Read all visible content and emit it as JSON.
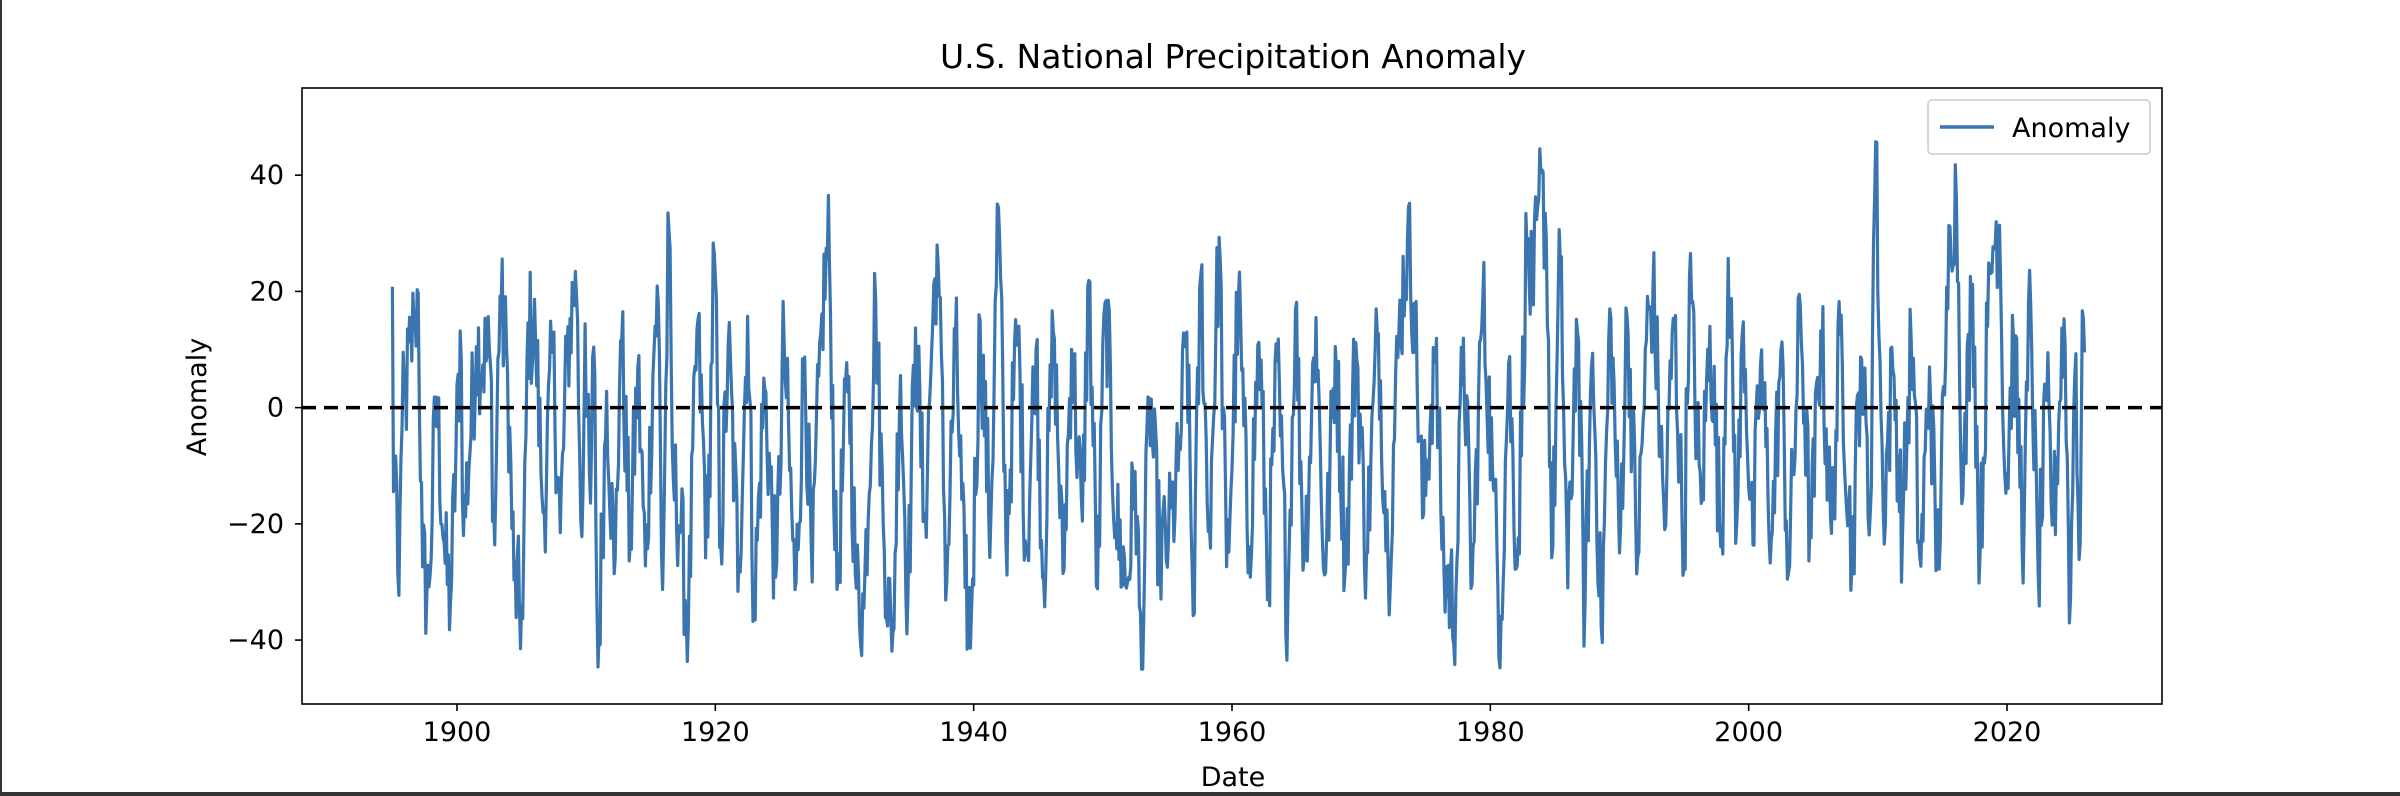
{
  "chart_data": {
    "type": "line",
    "title": "U.S. National Precipitation Anomaly",
    "xlabel": "Date",
    "ylabel": "Anomaly",
    "xlim": [
      1888,
      2032
    ],
    "ylim": [
      -51,
      55
    ],
    "xticks": [
      1900,
      1920,
      1940,
      1960,
      1980,
      2000,
      2020
    ],
    "yticks": [
      -40,
      -20,
      0,
      20,
      40
    ],
    "ytick_labels": [
      "−40",
      "−20",
      "0",
      "20",
      "40"
    ],
    "grid": false,
    "legend": {
      "position": "top-right",
      "entries": [
        "Anomaly"
      ]
    },
    "reference_line": {
      "y": 0,
      "style": "dashed",
      "color": "#000000"
    },
    "series": [
      {
        "name": "Anomaly",
        "color": "#3a75b0",
        "x_start": 1895.0,
        "x_step": 0.0833333,
        "keypoints": [
          [
            1895.0,
            20.8
          ],
          [
            1895.1,
            -21.5
          ],
          [
            1895.2,
            -3.5
          ],
          [
            1895.5,
            -32.3
          ],
          [
            1895.7,
            -4.0
          ],
          [
            1896.7,
            15.5
          ],
          [
            1897.0,
            19.7
          ],
          [
            1897.3,
            -27.0
          ],
          [
            1897.8,
            -32.8
          ],
          [
            1898.4,
            2.5
          ],
          [
            1899.1,
            -27.5
          ],
          [
            1899.5,
            -33.4
          ],
          [
            1900.3,
            14.2
          ],
          [
            1900.5,
            -22.0
          ],
          [
            1901.5,
            10.5
          ],
          [
            1902.6,
            7.5
          ],
          [
            1902.9,
            -25.5
          ],
          [
            1903.3,
            19.9
          ],
          [
            1903.9,
            6.9
          ],
          [
            1904.4,
            -29.5
          ],
          [
            1905.1,
            -36.5
          ],
          [
            1905.5,
            14.6
          ],
          [
            1906.1,
            11.4
          ],
          [
            1906.7,
            -19.8
          ],
          [
            1907.4,
            10.4
          ],
          [
            1908.0,
            -21.5
          ],
          [
            1908.5,
            8.0
          ],
          [
            1909.2,
            24.2
          ],
          [
            1909.7,
            -25.5
          ],
          [
            1909.9,
            15.9
          ],
          [
            1910.3,
            -20.0
          ],
          [
            1910.6,
            12.2
          ],
          [
            1910.9,
            -45.8
          ],
          [
            1911.6,
            4.0
          ],
          [
            1912.2,
            -30.5
          ],
          [
            1912.7,
            14.5
          ],
          [
            1913.4,
            -24.0
          ],
          [
            1914.0,
            6.8
          ],
          [
            1914.6,
            -28.2
          ],
          [
            1915.3,
            13.5
          ],
          [
            1915.6,
            18.1
          ],
          [
            1915.9,
            -33.5
          ],
          [
            1916.4,
            32.8
          ],
          [
            1916.7,
            -12.0
          ],
          [
            1917.3,
            -20.0
          ],
          [
            1917.9,
            -38.5
          ],
          [
            1918.6,
            14.8
          ],
          [
            1919.4,
            -24.0
          ],
          [
            1919.9,
            28.2
          ],
          [
            1920.4,
            -24.5
          ],
          [
            1921.0,
            10.8
          ],
          [
            1921.8,
            -28.0
          ],
          [
            1922.5,
            15.7
          ],
          [
            1923.0,
            -35.2
          ],
          [
            1923.8,
            4.5
          ],
          [
            1924.7,
            -30.5
          ],
          [
            1925.3,
            12.4
          ],
          [
            1926.2,
            -33.0
          ],
          [
            1926.9,
            9.8
          ],
          [
            1927.5,
            -30.0
          ],
          [
            1928.2,
            15.0
          ],
          [
            1928.8,
            28.7
          ],
          [
            1929.4,
            -32.0
          ],
          [
            1930.3,
            7.5
          ],
          [
            1930.9,
            -31.0
          ],
          [
            1931.5,
            -34.5
          ],
          [
            1932.4,
            19.5
          ],
          [
            1933.0,
            -20.0
          ],
          [
            1933.7,
            -43.0
          ],
          [
            1934.3,
            7.8
          ],
          [
            1934.9,
            -33.5
          ],
          [
            1935.5,
            13.7
          ],
          [
            1936.2,
            -21.0
          ],
          [
            1936.8,
            13.5
          ],
          [
            1937.2,
            29.3
          ],
          [
            1937.9,
            -31.0
          ],
          [
            1938.6,
            12.8
          ],
          [
            1939.3,
            -30.5
          ],
          [
            1939.8,
            -37.5
          ],
          [
            1940.5,
            15.0
          ],
          [
            1941.3,
            -22.0
          ],
          [
            1941.9,
            36.2
          ],
          [
            1942.5,
            -23.5
          ],
          [
            1943.4,
            14.5
          ],
          [
            1944.1,
            -26.0
          ],
          [
            1944.8,
            12.6
          ],
          [
            1945.4,
            -30.5
          ],
          [
            1946.2,
            15.0
          ],
          [
            1946.9,
            -29.5
          ],
          [
            1947.6,
            11.0
          ],
          [
            1948.4,
            -21.0
          ],
          [
            1948.9,
            23.2
          ],
          [
            1949.6,
            -32.5
          ],
          [
            1950.2,
            21.0
          ],
          [
            1951.0,
            -20.0
          ],
          [
            1951.9,
            -30.5
          ],
          [
            1952.5,
            -11.0
          ],
          [
            1953.0,
            -45.8
          ],
          [
            1953.6,
            3.0
          ],
          [
            1954.4,
            -25.0
          ],
          [
            1955.1,
            -22.5
          ],
          [
            1955.8,
            -12.0
          ],
          [
            1956.5,
            13.0
          ],
          [
            1957.0,
            -35.8
          ],
          [
            1957.6,
            24.5
          ],
          [
            1958.2,
            -24.0
          ],
          [
            1959.0,
            29.3
          ],
          [
            1959.6,
            -29.0
          ],
          [
            1960.5,
            19.5
          ],
          [
            1961.3,
            -25.5
          ],
          [
            1962.1,
            12.0
          ],
          [
            1962.8,
            -30.0
          ],
          [
            1963.5,
            8.0
          ],
          [
            1964.3,
            -35.2
          ],
          [
            1964.9,
            18.0
          ],
          [
            1965.6,
            -27.0
          ],
          [
            1966.5,
            15.5
          ],
          [
            1967.2,
            -31.0
          ],
          [
            1968.0,
            10.5
          ],
          [
            1968.8,
            -27.0
          ],
          [
            1969.6,
            12.0
          ],
          [
            1970.4,
            -26.0
          ],
          [
            1971.3,
            14.5
          ],
          [
            1972.1,
            -28.0
          ],
          [
            1972.9,
            12.0
          ],
          [
            1973.6,
            29.7
          ],
          [
            1974.1,
            17.5
          ],
          [
            1974.8,
            -19.5
          ],
          [
            1975.7,
            10.5
          ],
          [
            1976.4,
            -28.0
          ],
          [
            1977.3,
            -34.5
          ],
          [
            1977.9,
            13.0
          ],
          [
            1978.6,
            -31.5
          ],
          [
            1979.4,
            19.5
          ],
          [
            1980.2,
            -12.0
          ],
          [
            1980.8,
            -38.5
          ],
          [
            1981.4,
            8.5
          ],
          [
            1982.1,
            -28.0
          ],
          [
            1982.8,
            28.8
          ],
          [
            1983.3,
            16.0
          ],
          [
            1983.7,
            36.3
          ],
          [
            1984.3,
            33.1
          ],
          [
            1984.8,
            -27.0
          ],
          [
            1985.4,
            27.0
          ],
          [
            1986.0,
            -31.0
          ],
          [
            1986.7,
            17.5
          ],
          [
            1987.3,
            -36.0
          ],
          [
            1987.9,
            10.5
          ],
          [
            1988.6,
            -39.0
          ],
          [
            1989.3,
            17.5
          ],
          [
            1990.0,
            -25.0
          ],
          [
            1990.6,
            17.0
          ],
          [
            1991.4,
            -26.5
          ],
          [
            1992.1,
            12.5
          ],
          [
            1992.6,
            20.4
          ],
          [
            1993.5,
            -21.0
          ],
          [
            1994.2,
            17.2
          ],
          [
            1995.0,
            -27.5
          ],
          [
            1995.4,
            23.5
          ],
          [
            1996.3,
            -18.0
          ],
          [
            1997.0,
            14.0
          ],
          [
            1997.9,
            -24.5
          ],
          [
            1998.4,
            26.8
          ],
          [
            1999.1,
            -21.0
          ],
          [
            1999.6,
            16.0
          ],
          [
            2000.3,
            -25.5
          ],
          [
            2000.9,
            8.0
          ],
          [
            2001.8,
            -23.0
          ],
          [
            2002.5,
            10.0
          ],
          [
            2003.1,
            -29.5
          ],
          [
            2004.0,
            17.4
          ],
          [
            2004.8,
            -24.0
          ],
          [
            2005.6,
            14.0
          ],
          [
            2006.4,
            -22.5
          ],
          [
            2007.1,
            13.5
          ],
          [
            2008.0,
            -27.0
          ],
          [
            2008.7,
            10.5
          ],
          [
            2009.4,
            -21.0
          ],
          [
            2009.8,
            49.5
          ],
          [
            2010.4,
            -18.0
          ],
          [
            2011.2,
            7.5
          ],
          [
            2011.9,
            -22.0
          ],
          [
            2012.6,
            12.5
          ],
          [
            2013.3,
            -29.0
          ],
          [
            2014.0,
            7.0
          ],
          [
            2014.6,
            -28.5
          ],
          [
            2015.2,
            4.0
          ],
          [
            2015.6,
            32.3
          ],
          [
            2016.1,
            36.4
          ],
          [
            2016.6,
            -17.0
          ],
          [
            2017.3,
            24.0
          ],
          [
            2017.9,
            -26.0
          ],
          [
            2018.5,
            14.0
          ],
          [
            2018.9,
            27.5
          ],
          [
            2019.4,
            33.0
          ],
          [
            2019.9,
            -15.5
          ],
          [
            2020.5,
            12.0
          ],
          [
            2021.3,
            -22.0
          ],
          [
            2021.8,
            20.5
          ],
          [
            2022.4,
            -29.5
          ],
          [
            2023.1,
            2.0
          ],
          [
            2023.6,
            -20.5
          ],
          [
            2024.4,
            17.0
          ],
          [
            2024.9,
            -35.0
          ],
          [
            2025.3,
            14.0
          ],
          [
            2025.6,
            -28.5
          ],
          [
            2025.9,
            16.5
          ],
          [
            2026.0,
            9.5
          ]
        ]
      }
    ]
  }
}
